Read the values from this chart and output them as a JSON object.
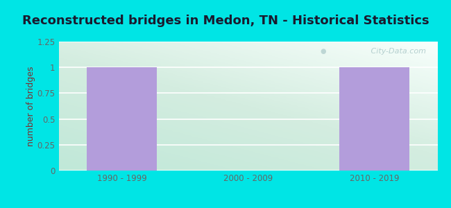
{
  "title": "Reconstructed bridges in Medon, TN - Historical Statistics",
  "categories": [
    "1990 - 1999",
    "2000 - 2009",
    "2010 - 2019"
  ],
  "values": [
    1,
    0,
    1
  ],
  "bar_color": "#b39ddb",
  "ylabel": "number of bridges",
  "ylim": [
    0,
    1.25
  ],
  "yticks": [
    0,
    0.25,
    0.5,
    0.75,
    1.0,
    1.25
  ],
  "ytick_labels": [
    "0",
    "0.25",
    "0.5",
    "0.75",
    "1",
    "1.25"
  ],
  "background_outer": "#00e5e5",
  "background_plot_topleft": "#e0f0e8",
  "background_plot_topright": "#f8fffe",
  "background_plot_bottomleft": "#c8ede0",
  "background_plot_bottomright": "#e8f8f0",
  "title_color": "#1a1a2e",
  "axis_label_color": "#7b3030",
  "tick_label_color": "#666666",
  "watermark_text": " City-Data.com",
  "title_fontsize": 13,
  "ylabel_fontsize": 9,
  "tick_fontsize": 8.5,
  "bar_width": 0.55
}
